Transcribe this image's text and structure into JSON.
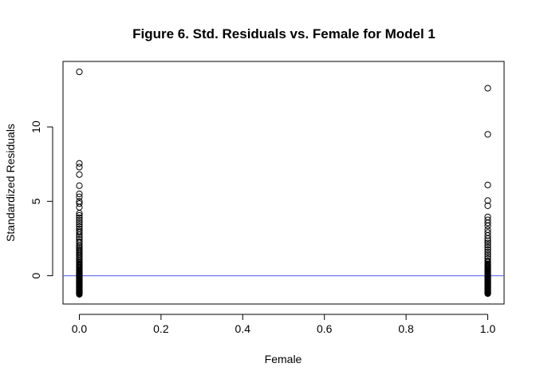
{
  "chart_data": {
    "type": "scatter",
    "title": "Figure 6. Std. Residuals vs. Female for Model 1",
    "xlabel": "Female",
    "ylabel": "Standardized Residuals",
    "xlim": [
      -0.04,
      1.04
    ],
    "ylim": [
      -1.9,
      14.4
    ],
    "x_ticks": [
      0.0,
      0.2,
      0.4,
      0.6,
      0.8,
      1.0
    ],
    "x_tick_labels": [
      "0.0",
      "0.2",
      "0.4",
      "0.6",
      "0.8",
      "1.0"
    ],
    "y_ticks": [
      0,
      5,
      10
    ],
    "y_tick_labels": [
      "0",
      "5",
      "10"
    ],
    "grid": false,
    "legend": "none",
    "reference_line": {
      "y": 0,
      "color": "#4b5cf0"
    },
    "point_color": "#000000",
    "series": [
      {
        "x": [
          0,
          0,
          0,
          0,
          0,
          0,
          0,
          0,
          0,
          0,
          0,
          0,
          0,
          0,
          0,
          0,
          0,
          0,
          0,
          0,
          0,
          0,
          0,
          0,
          0,
          0,
          0,
          0,
          0,
          0,
          0,
          0,
          0,
          0,
          0,
          0,
          0,
          0,
          0,
          0,
          0,
          0,
          0,
          0,
          0,
          0,
          0,
          0,
          0,
          0,
          0,
          0,
          0,
          0,
          0,
          0,
          0,
          0,
          0,
          0,
          0,
          0,
          0,
          0,
          0,
          0,
          0,
          0,
          0,
          0,
          0,
          0,
          0,
          0,
          0,
          0,
          0,
          0,
          0,
          0,
          0,
          0,
          0,
          0,
          0,
          0,
          0,
          0,
          0,
          0,
          0,
          0,
          0,
          0,
          0,
          0,
          0,
          0,
          0,
          0,
          0,
          0,
          0,
          0,
          0,
          0
        ],
        "y": [
          13.7,
          7.55,
          7.3,
          6.8,
          6.05,
          5.5,
          5.3,
          5.0,
          4.85,
          4.6,
          4.2,
          4.05,
          3.9,
          3.75,
          3.6,
          3.45,
          3.3,
          3.15,
          3.0,
          2.9,
          2.75,
          2.6,
          2.45,
          2.3,
          2.2,
          2.05,
          1.95,
          1.85,
          1.75,
          1.65,
          1.55,
          1.45,
          1.35,
          1.25,
          1.15,
          1.05,
          0.95,
          0.88,
          0.8,
          0.72,
          0.65,
          0.58,
          0.5,
          0.43,
          0.36,
          0.3,
          0.24,
          0.18,
          0.12,
          0.06,
          0.0,
          -0.05,
          -0.1,
          -0.15,
          -0.2,
          -0.25,
          -0.3,
          -0.35,
          -0.4,
          -0.45,
          -0.5,
          -0.55,
          -0.6,
          -0.65,
          -0.7,
          -0.75,
          -0.8,
          -0.85,
          -0.9,
          -0.95,
          -1.0,
          -1.05,
          -1.1,
          -1.15,
          -1.2,
          -1.25,
          -0.02,
          -0.12,
          -0.22,
          -0.32,
          -0.42,
          -0.52,
          -0.62,
          -0.72,
          -0.82,
          -0.92,
          -1.02,
          -1.12,
          0.15,
          0.35,
          0.55,
          0.75,
          -0.08,
          -0.18,
          -0.28,
          -0.38,
          -0.48,
          -0.58,
          -0.68,
          -0.78,
          -0.88,
          -0.98,
          -1.08,
          -1.18,
          0.1,
          0.2
        ]
      },
      {
        "x": [
          1,
          1,
          1,
          1,
          1,
          1,
          1,
          1,
          1,
          1,
          1,
          1,
          1,
          1,
          1,
          1,
          1,
          1,
          1,
          1,
          1,
          1,
          1,
          1,
          1,
          1,
          1,
          1,
          1,
          1,
          1,
          1,
          1,
          1,
          1,
          1,
          1,
          1,
          1,
          1,
          1,
          1,
          1,
          1,
          1,
          1,
          1,
          1,
          1,
          1,
          1,
          1,
          1,
          1,
          1,
          1,
          1,
          1,
          1,
          1,
          1,
          1,
          1,
          1,
          1,
          1,
          1,
          1,
          1,
          1,
          1,
          1,
          1,
          1,
          1,
          1,
          1,
          1,
          1,
          1,
          1,
          1,
          1,
          1,
          1,
          1,
          1,
          1,
          1,
          1
        ],
        "y": [
          12.6,
          9.5,
          6.1,
          5.05,
          4.7,
          3.95,
          3.75,
          3.55,
          3.35,
          3.1,
          2.9,
          2.7,
          2.5,
          2.35,
          2.2,
          2.05,
          1.9,
          1.75,
          1.6,
          1.45,
          1.3,
          1.15,
          1.0,
          0.9,
          0.8,
          0.7,
          0.6,
          0.5,
          0.42,
          0.34,
          0.26,
          0.18,
          0.1,
          0.02,
          -0.05,
          -0.1,
          -0.15,
          -0.2,
          -0.25,
          -0.3,
          -0.35,
          -0.4,
          -0.45,
          -0.5,
          -0.55,
          -0.6,
          -0.65,
          -0.7,
          -0.75,
          -0.8,
          -0.85,
          -0.9,
          -0.95,
          -1.0,
          -1.05,
          -1.1,
          -1.15,
          -1.2,
          -0.02,
          -0.12,
          -0.22,
          -0.32,
          -0.42,
          -0.52,
          -0.62,
          -0.72,
          -0.82,
          -0.92,
          -1.02,
          -1.12,
          0.15,
          0.35,
          0.55,
          0.75,
          -0.08,
          -0.18,
          -0.28,
          -0.38,
          -0.48,
          -0.58,
          -0.68,
          -0.78,
          -0.88,
          -0.98,
          -1.08,
          -1.18,
          0.05,
          0.25,
          0.45,
          0.65
        ]
      }
    ]
  }
}
